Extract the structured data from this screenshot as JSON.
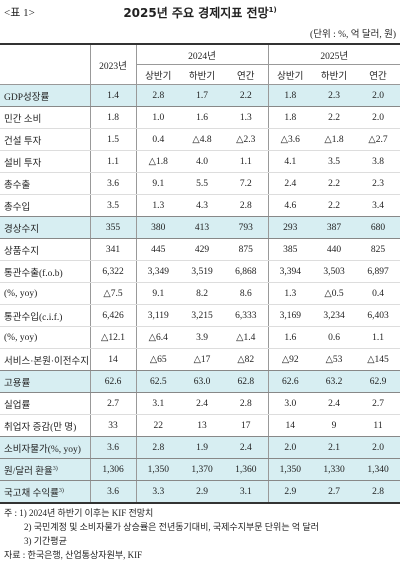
{
  "header": {
    "table_no": "<표 1>",
    "title": "2025년 주요 경제지표 전망",
    "title_note": "1)",
    "unit": "(단위 : %, 억 달러, 원)"
  },
  "table": {
    "columns": {
      "y2023": "2023년",
      "y2024": "2024년",
      "y2025": "2025년",
      "sub2024": [
        "상반기",
        "하반기",
        "연간"
      ],
      "sub2025": [
        "상반기",
        "하반기",
        "연간"
      ]
    },
    "rows": [
      {
        "label": "GDP성장률",
        "cells": [
          "1.4",
          "2.8",
          "1.7",
          "2.2",
          "1.8",
          "2.3",
          "2.0"
        ]
      },
      {
        "label": "민간 소비",
        "cells": [
          "1.8",
          "1.0",
          "1.6",
          "1.3",
          "1.8",
          "2.2",
          "2.0"
        ]
      },
      {
        "label": "건설 투자",
        "cells": [
          "1.5",
          "0.4",
          "△4.8",
          "△2.3",
          "△3.6",
          "△1.8",
          "△2.7"
        ]
      },
      {
        "label": "설비 투자",
        "cells": [
          "1.1",
          "△1.8",
          "4.0",
          "1.1",
          "4.1",
          "3.5",
          "3.8"
        ]
      },
      {
        "label": "총수출",
        "cells": [
          "3.6",
          "9.1",
          "5.5",
          "7.2",
          "2.4",
          "2.2",
          "2.3"
        ]
      },
      {
        "label": "총수입",
        "cells": [
          "3.5",
          "1.3",
          "4.3",
          "2.8",
          "4.6",
          "2.2",
          "3.4"
        ]
      },
      {
        "label": "경상수지",
        "cells": [
          "355",
          "380",
          "413",
          "793",
          "293",
          "387",
          "680"
        ]
      },
      {
        "label": "상품수지",
        "cells": [
          "341",
          "445",
          "429",
          "875",
          "385",
          "440",
          "825"
        ]
      },
      {
        "label": "통관수출(f.o.b)",
        "cells": [
          "6,322",
          "3,349",
          "3,519",
          "6,868",
          "3,394",
          "3,503",
          "6,897"
        ]
      },
      {
        "label": "(%, yoy)",
        "cells": [
          "△7.5",
          "9.1",
          "8.2",
          "8.6",
          "1.3",
          "△0.5",
          "0.4"
        ]
      },
      {
        "label": "통관수입(c.i.f.)",
        "cells": [
          "6,426",
          "3,119",
          "3,215",
          "6,333",
          "3,169",
          "3,234",
          "6,403"
        ]
      },
      {
        "label": "(%, yoy)",
        "cells": [
          "△12.1",
          "△6.4",
          "3.9",
          "△1.4",
          "1.6",
          "0.6",
          "1.1"
        ]
      },
      {
        "label": "서비스·본원·이전수지",
        "cells": [
          "14",
          "△65",
          "△17",
          "△82",
          "△92",
          "△53",
          "△145"
        ]
      },
      {
        "label": "고용률",
        "cells": [
          "62.6",
          "62.5",
          "63.0",
          "62.8",
          "62.6",
          "63.2",
          "62.9"
        ]
      },
      {
        "label": "실업률",
        "cells": [
          "2.7",
          "3.1",
          "2.4",
          "2.8",
          "3.0",
          "2.4",
          "2.7"
        ]
      },
      {
        "label": "취업자 증감(만 명)",
        "cells": [
          "33",
          "22",
          "13",
          "17",
          "14",
          "9",
          "11"
        ]
      },
      {
        "label": "소비자물가(%, yoy)",
        "cells": [
          "3.6",
          "2.8",
          "1.9",
          "2.4",
          "2.0",
          "2.1",
          "2.0"
        ]
      },
      {
        "label": "원/달러 환율",
        "note": "3)",
        "cells": [
          "1,306",
          "1,350",
          "1,370",
          "1,360",
          "1,350",
          "1,330",
          "1,340"
        ]
      },
      {
        "label": "국고채 수익률",
        "note": "3)",
        "cells": [
          "3.6",
          "3.3",
          "2.9",
          "3.1",
          "2.9",
          "2.7",
          "2.8"
        ]
      }
    ]
  },
  "footnotes": {
    "prefix": "주 :",
    "items": [
      "1) 2024년 하반기 이후는 KIF 전망치",
      "2) 국민계정 및 소비자물가 상승률은 전년동기대비, 국제수지부문 단위는 억 달러",
      "3) 기간평균"
    ],
    "source": "자료 : 한국은행, 산업통상자원부, KIF"
  }
}
